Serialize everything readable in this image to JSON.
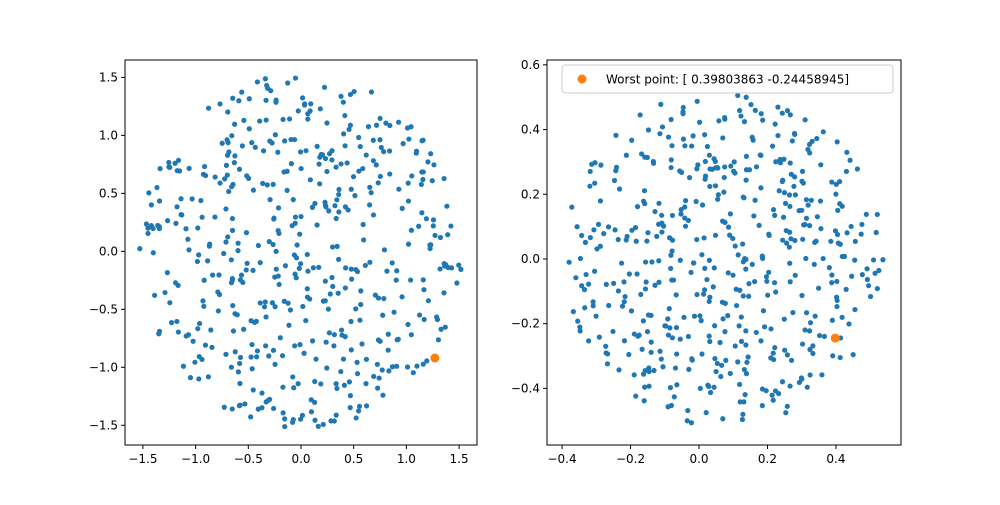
{
  "colors": {
    "points": "#1f77b4",
    "highlight": "#ff7f0e",
    "legend_border": "#cccccc"
  },
  "chart_data": [
    {
      "type": "scatter",
      "title": "",
      "xlabel": "",
      "ylabel": "",
      "xlim": [
        -1.67,
        1.67
      ],
      "ylim": [
        -1.67,
        1.65
      ],
      "xticks": [
        -1.5,
        -1.0,
        -0.5,
        0.0,
        0.5,
        1.0,
        1.5
      ],
      "yticks": [
        -1.5,
        -1.0,
        -0.5,
        0.0,
        0.5,
        1.0,
        1.5
      ],
      "xtick_labels": [
        "−1.5",
        "−1.0",
        "−0.5",
        "0.0",
        "0.5",
        "1.0",
        "1.5"
      ],
      "ytick_labels": [
        "−1.5",
        "−1.0",
        "−0.5",
        "0.0",
        "0.5",
        "1.0",
        "1.5"
      ],
      "grid": false,
      "point_count": 500,
      "point_seed": 12345,
      "point_distribution": "uniform-disk",
      "disk_radius": 1.53,
      "highlight_point": {
        "x": 1.27,
        "y": -0.92
      }
    },
    {
      "type": "scatter",
      "title": "",
      "xlabel": "",
      "ylabel": "",
      "xlim": [
        -0.444,
        0.59
      ],
      "ylim": [
        -0.575,
        0.615
      ],
      "xticks": [
        -0.4,
        -0.2,
        0.0,
        0.2,
        0.4
      ],
      "yticks": [
        -0.4,
        -0.2,
        0.0,
        0.2,
        0.4,
        0.6
      ],
      "xtick_labels": [
        "−0.4",
        "−0.2",
        "0.0",
        "0.2",
        "0.4"
      ],
      "ytick_labels": [
        "−0.4",
        "−0.2",
        "0.0",
        "0.2",
        "0.4",
        "0.6"
      ],
      "grid": false,
      "point_count": 500,
      "point_seed": 777,
      "point_distribution": "uniform-ellipse",
      "ellipse_center": [
        0.07,
        0.0
      ],
      "ellipse_radii": [
        0.47,
        0.52
      ],
      "highlight_point": {
        "x": 0.39803863,
        "y": -0.24458945
      },
      "legend": {
        "position": "upper-left",
        "entries": [
          {
            "label": "Worst point: [ 0.39803863 -0.24458945]",
            "color": "#ff7f0e"
          }
        ]
      }
    }
  ]
}
